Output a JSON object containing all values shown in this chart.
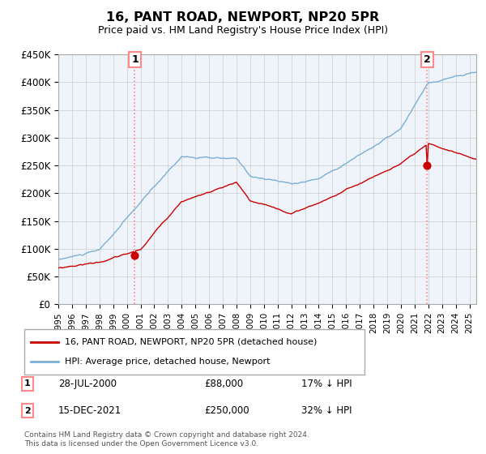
{
  "title": "16, PANT ROAD, NEWPORT, NP20 5PR",
  "subtitle": "Price paid vs. HM Land Registry's House Price Index (HPI)",
  "ylabel_ticks": [
    "£0",
    "£50K",
    "£100K",
    "£150K",
    "£200K",
    "£250K",
    "£300K",
    "£350K",
    "£400K",
    "£450K"
  ],
  "ylim": [
    0,
    450000
  ],
  "xlim_start": 1995.0,
  "xlim_end": 2025.5,
  "legend_line1": "16, PANT ROAD, NEWPORT, NP20 5PR (detached house)",
  "legend_line2": "HPI: Average price, detached house, Newport",
  "transaction1_label": "1",
  "transaction1_date": "28-JUL-2000",
  "transaction1_price": "£88,000",
  "transaction1_note": "17% ↓ HPI",
  "transaction2_label": "2",
  "transaction2_date": "15-DEC-2021",
  "transaction2_price": "£250,000",
  "transaction2_note": "32% ↓ HPI",
  "footnote": "Contains HM Land Registry data © Crown copyright and database right 2024.\nThis data is licensed under the Open Government Licence v3.0.",
  "color_red": "#CC0000",
  "color_blue": "#7BAFD4",
  "color_vline": "#FF8888",
  "background_color": "#FFFFFF",
  "grid_color": "#CCCCCC",
  "plot_bg": "#EEF4FA"
}
